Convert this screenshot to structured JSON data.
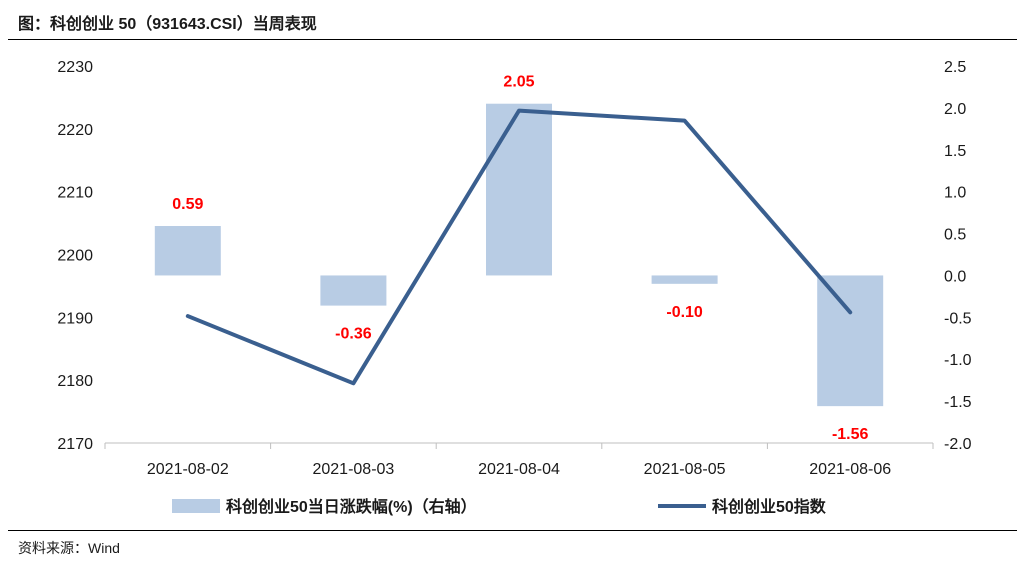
{
  "header": {
    "title": "图：科创创业 50（931643.CSI）当周表现"
  },
  "footer": {
    "source": "资料来源：Wind"
  },
  "chart_data": {
    "type": "bar",
    "categories": [
      "2021-08-02",
      "2021-08-03",
      "2021-08-04",
      "2021-08-05",
      "2021-08-06"
    ],
    "series": [
      {
        "name": "科创创业50当日涨跌幅(%)（右轴）",
        "type": "bar",
        "axis": "right",
        "values": [
          0.59,
          -0.36,
          2.05,
          -0.1,
          -1.56
        ],
        "data_labels": [
          "0.59",
          "-0.36",
          "2.05",
          "-0.10",
          "-1.56"
        ],
        "color": "#b8cce4"
      },
      {
        "name": "科创创业50指数",
        "type": "line",
        "axis": "left",
        "values": [
          2190.2,
          2179.5,
          2222.9,
          2221.3,
          2190.8
        ],
        "color": "#3a5f8f"
      }
    ],
    "y_left": {
      "ylim": [
        2170,
        2230
      ],
      "ticks": [
        "2170",
        "2180",
        "2190",
        "2200",
        "2210",
        "2220",
        "2230"
      ],
      "tick_values": [
        2170,
        2180,
        2190,
        2200,
        2210,
        2220,
        2230
      ]
    },
    "y_right": {
      "ylim": [
        -2.0,
        2.5
      ],
      "ticks": [
        "-2.0",
        "-1.5",
        "-1.0",
        "-0.5",
        "0.0",
        "0.5",
        "1.0",
        "1.5",
        "2.0",
        "2.5"
      ],
      "tick_values": [
        -2.0,
        -1.5,
        -1.0,
        -0.5,
        0.0,
        0.5,
        1.0,
        1.5,
        2.0,
        2.5
      ]
    },
    "grid": false,
    "legend_position": "bottom",
    "label_color": "#ff0000"
  }
}
